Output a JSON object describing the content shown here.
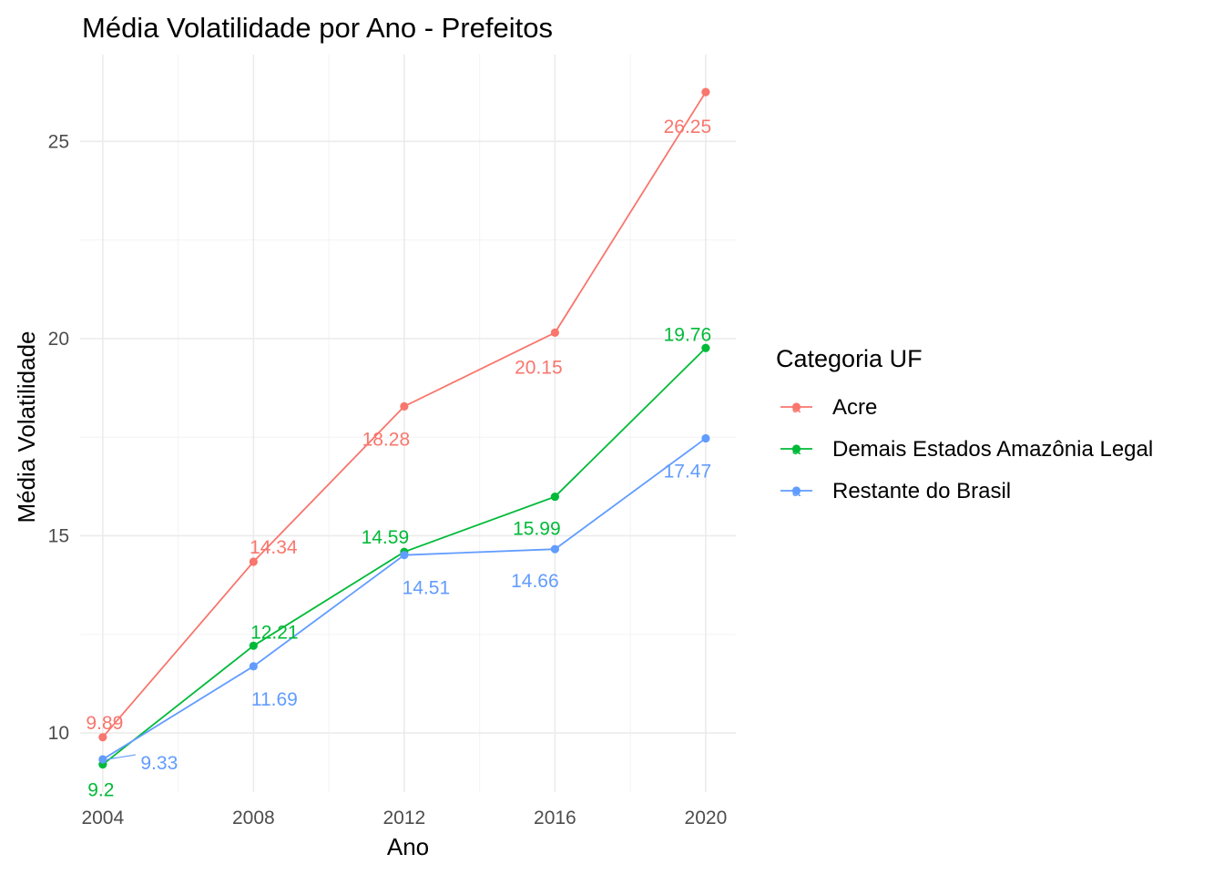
{
  "chart_data": {
    "type": "line",
    "title": "Média Volatilidade por Ano - Prefeitos",
    "xlabel": "Ano",
    "ylabel": "Média Volatilidade",
    "x": [
      2004,
      2008,
      2012,
      2016,
      2020
    ],
    "x_ticks": [
      "2004",
      "2008",
      "2012",
      "2016",
      "2020"
    ],
    "y_ticks": [
      "10",
      "15",
      "20",
      "25"
    ],
    "xlim": [
      2003.4,
      2020.8
    ],
    "ylim": [
      8.5,
      27.2
    ],
    "grid": true,
    "legend": {
      "title": "Categoria UF",
      "placement": "right",
      "key_glyph": "a"
    },
    "series": [
      {
        "name": "Acre",
        "color": "#F8766D",
        "values": [
          9.89,
          14.34,
          18.28,
          20.15,
          26.25
        ],
        "labels": [
          "9.89",
          "14.34",
          "18.28",
          "20.15",
          "26.25"
        ]
      },
      {
        "name": "Demais Estados Amazônia Legal",
        "color": "#00BA38",
        "values": [
          9.2,
          12.21,
          14.59,
          15.99,
          19.76
        ],
        "labels": [
          "9.2",
          "12.21",
          "14.59",
          "15.99",
          "19.76"
        ]
      },
      {
        "name": "Restante do Brasil",
        "color": "#619CFF",
        "values": [
          9.33,
          11.69,
          14.51,
          14.66,
          17.47
        ],
        "labels": [
          "9.33",
          "11.69",
          "14.51",
          "14.66",
          "17.47"
        ]
      }
    ]
  }
}
